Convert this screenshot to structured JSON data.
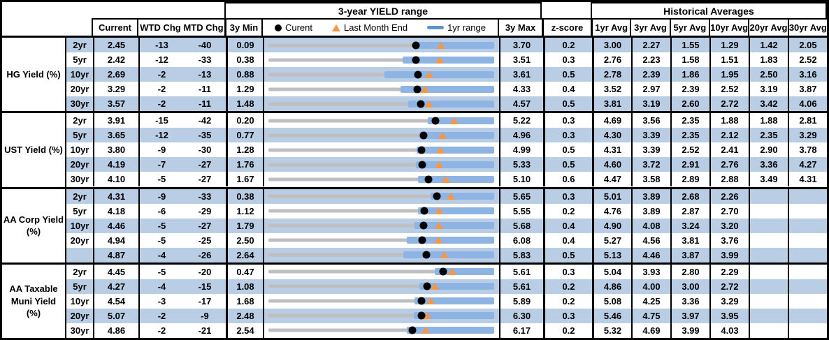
{
  "titles": {
    "range": "3-year YIELD range",
    "historical": "Historical Averages"
  },
  "legend": {
    "current": "Curent",
    "last_month_end": "Last Month End",
    "range_1yr": "1yr range"
  },
  "columns": {
    "current": "Current",
    "wtd": "WTD Chg",
    "mtd": "MTD Chg",
    "min3y": "3y Min",
    "max3y": "3y Max",
    "zscore": "z-score",
    "averages": [
      "1yr Avg",
      "3yr Avg",
      "5yr Avg",
      "10yr Avg",
      "20yr Avg",
      "30yr Avg"
    ]
  },
  "colors": {
    "stripe": "#B9CDE5",
    "bar_1yr_range": "#8EB4E3",
    "track_3y_range": "#BFBFBF",
    "marker_last_month_end": "#F79646",
    "marker_current": "#000000",
    "legend_dash": "#6291CE"
  },
  "chart_data": {
    "type": "bullet-range-table",
    "title": "3-year YIELD range",
    "note": "per row: gray track spans 3y Min to 3y Max; blue bar = 1yr range; black dot = Curent; orange triangle = Last Month End; values in percent yield",
    "groups": [
      {
        "label": "HG Yield (%)",
        "label_lines": [
          "HG Yield (%)"
        ],
        "rows": [
          {
            "tenor": "2yr",
            "current": "2.45",
            "wtd_chg": "-13",
            "mtd_chg": "-40",
            "min_3y": "0.09",
            "max_3y": "3.70",
            "z_score": "0.2",
            "averages": [
              "3.00",
              "2.27",
              "1.55",
              "1.29",
              "1.42",
              "2.05"
            ],
            "chart": {
              "min": 0.09,
              "max": 3.7,
              "current": 2.45,
              "last_month_end": 2.85,
              "range_1yr_low": 2.4,
              "range_1yr_high": 3.7
            }
          },
          {
            "tenor": "5yr",
            "current": "2.42",
            "wtd_chg": "-12",
            "mtd_chg": "-33",
            "min_3y": "0.38",
            "max_3y": "3.51",
            "z_score": "0.3",
            "averages": [
              "2.76",
              "2.23",
              "1.58",
              "1.51",
              "1.83",
              "2.52"
            ],
            "chart": {
              "min": 0.38,
              "max": 3.51,
              "current": 2.42,
              "last_month_end": 2.75,
              "range_1yr_low": 2.24,
              "range_1yr_high": 3.51
            }
          },
          {
            "tenor": "10yr",
            "current": "2.69",
            "wtd_chg": "-2",
            "mtd_chg": "-13",
            "min_3y": "0.88",
            "max_3y": "3.61",
            "z_score": "0.5",
            "averages": [
              "2.78",
              "2.39",
              "1.86",
              "1.95",
              "2.50",
              "3.16"
            ],
            "chart": {
              "min": 0.88,
              "max": 3.61,
              "current": 2.69,
              "last_month_end": 2.82,
              "range_1yr_low": 2.28,
              "range_1yr_high": 3.61
            }
          },
          {
            "tenor": "20yr",
            "current": "3.29",
            "wtd_chg": "-2",
            "mtd_chg": "-11",
            "min_3y": "1.29",
            "max_3y": "4.33",
            "z_score": "0.4",
            "averages": [
              "3.52",
              "2.97",
              "2.39",
              "2.52",
              "3.19",
              "3.87"
            ],
            "chart": {
              "min": 1.29,
              "max": 4.33,
              "current": 3.29,
              "last_month_end": 3.4,
              "range_1yr_low": 3.07,
              "range_1yr_high": 4.33
            }
          },
          {
            "tenor": "30yr",
            "current": "3.57",
            "wtd_chg": "-2",
            "mtd_chg": "-11",
            "min_3y": "1.48",
            "max_3y": "4.57",
            "z_score": "0.5",
            "averages": [
              "3.81",
              "3.19",
              "2.60",
              "2.72",
              "3.42",
              "4.06"
            ],
            "chart": {
              "min": 1.48,
              "max": 4.57,
              "current": 3.57,
              "last_month_end": 3.68,
              "range_1yr_low": 3.39,
              "range_1yr_high": 4.57
            }
          }
        ]
      },
      {
        "label": "UST Yield (%)",
        "label_lines": [
          "UST Yield (%)"
        ],
        "rows": [
          {
            "tenor": "2yr",
            "current": "3.91",
            "wtd_chg": "-15",
            "mtd_chg": "-42",
            "min_3y": "0.20",
            "max_3y": "5.22",
            "z_score": "0.3",
            "averages": [
              "4.69",
              "3.56",
              "2.35",
              "1.88",
              "1.88",
              "2.81"
            ],
            "chart": {
              "min": 0.2,
              "max": 5.22,
              "current": 3.91,
              "last_month_end": 4.33,
              "range_1yr_low": 3.75,
              "range_1yr_high": 5.22
            }
          },
          {
            "tenor": "5yr",
            "current": "3.65",
            "wtd_chg": "-12",
            "mtd_chg": "-35",
            "min_3y": "0.77",
            "max_3y": "4.96",
            "z_score": "0.3",
            "averages": [
              "4.30",
              "3.39",
              "2.35",
              "2.12",
              "2.35",
              "3.29"
            ],
            "chart": {
              "min": 0.77,
              "max": 4.96,
              "current": 3.65,
              "last_month_end": 4.0,
              "range_1yr_low": 3.57,
              "range_1yr_high": 4.96
            }
          },
          {
            "tenor": "10yr",
            "current": "3.80",
            "wtd_chg": "-9",
            "mtd_chg": "-30",
            "min_3y": "1.28",
            "max_3y": "4.99",
            "z_score": "0.5",
            "averages": [
              "4.31",
              "3.39",
              "2.52",
              "2.41",
              "2.90",
              "3.78"
            ],
            "chart": {
              "min": 1.28,
              "max": 4.99,
              "current": 3.8,
              "last_month_end": 4.1,
              "range_1yr_low": 3.72,
              "range_1yr_high": 4.99
            }
          },
          {
            "tenor": "20yr",
            "current": "4.19",
            "wtd_chg": "-7",
            "mtd_chg": "-27",
            "min_3y": "1.76",
            "max_3y": "5.33",
            "z_score": "0.5",
            "averages": [
              "4.60",
              "3.72",
              "2.91",
              "2.76",
              "3.36",
              "4.27"
            ],
            "chart": {
              "min": 1.76,
              "max": 5.33,
              "current": 4.19,
              "last_month_end": 4.46,
              "range_1yr_low": 4.09,
              "range_1yr_high": 5.33
            }
          },
          {
            "tenor": "30yr",
            "current": "4.10",
            "wtd_chg": "-5",
            "mtd_chg": "-27",
            "min_3y": "1.67",
            "max_3y": "5.10",
            "z_score": "0.6",
            "averages": [
              "4.47",
              "3.58",
              "2.89",
              "2.88",
              "3.49",
              "4.31"
            ],
            "chart": {
              "min": 1.67,
              "max": 5.1,
              "current": 4.1,
              "last_month_end": 4.37,
              "range_1yr_low": 3.94,
              "range_1yr_high": 5.1
            }
          }
        ]
      },
      {
        "label": "AA Corp Yield (%)",
        "label_lines": [
          "AA Corp Yield",
          "(%)"
        ],
        "rows": [
          {
            "tenor": "2yr",
            "current": "4.31",
            "wtd_chg": "-9",
            "mtd_chg": "-33",
            "min_3y": "0.38",
            "max_3y": "5.65",
            "z_score": "0.3",
            "averages": [
              "5.01",
              "3.89",
              "2.68",
              "2.26",
              "",
              ""
            ],
            "chart": {
              "min": 0.38,
              "max": 5.65,
              "current": 4.31,
              "last_month_end": 4.64,
              "range_1yr_low": 4.17,
              "range_1yr_high": 5.65
            }
          },
          {
            "tenor": "5yr",
            "current": "4.18",
            "wtd_chg": "-6",
            "mtd_chg": "-29",
            "min_3y": "1.12",
            "max_3y": "5.55",
            "z_score": "0.2",
            "averages": [
              "4.76",
              "3.89",
              "2.87",
              "2.70",
              "",
              ""
            ],
            "chart": {
              "min": 1.12,
              "max": 5.55,
              "current": 4.18,
              "last_month_end": 4.47,
              "range_1yr_low": 4.06,
              "range_1yr_high": 5.55
            }
          },
          {
            "tenor": "10yr",
            "current": "4.46",
            "wtd_chg": "-5",
            "mtd_chg": "-27",
            "min_3y": "1.79",
            "max_3y": "5.68",
            "z_score": "0.4",
            "averages": [
              "4.90",
              "4.08",
              "3.24",
              "3.20",
              "",
              ""
            ],
            "chart": {
              "min": 1.79,
              "max": 5.68,
              "current": 4.46,
              "last_month_end": 4.73,
              "range_1yr_low": 4.31,
              "range_1yr_high": 5.68
            }
          },
          {
            "tenor": "20yr",
            "current": "4.94",
            "wtd_chg": "-5",
            "mtd_chg": "-25",
            "min_3y": "2.50",
            "max_3y": "6.08",
            "z_score": "0.4",
            "averages": [
              "5.27",
              "4.56",
              "3.81",
              "3.76",
              "",
              ""
            ],
            "chart": {
              "min": 2.5,
              "max": 6.08,
              "current": 4.94,
              "last_month_end": 5.19,
              "range_1yr_low": 4.7,
              "range_1yr_high": 6.08
            }
          },
          {
            "tenor": "",
            "current": "4.87",
            "wtd_chg": "-4",
            "mtd_chg": "-26",
            "min_3y": "2.64",
            "max_3y": "5.83",
            "z_score": "0.5",
            "averages": [
              "5.13",
              "4.46",
              "3.87",
              "3.99",
              "",
              ""
            ],
            "chart": {
              "min": 2.64,
              "max": 5.83,
              "current": 4.87,
              "last_month_end": 5.13,
              "range_1yr_low": 4.55,
              "range_1yr_high": 5.83
            }
          }
        ]
      },
      {
        "label": "AA Taxable Muni Yield (%)",
        "label_lines": [
          "AA Taxable",
          "Muni Yield",
          "(%)"
        ],
        "rows": [
          {
            "tenor": "2yr",
            "current": "4.45",
            "wtd_chg": "-5",
            "mtd_chg": "-20",
            "min_3y": "0.47",
            "max_3y": "5.61",
            "z_score": "0.3",
            "averages": [
              "5.04",
              "3.93",
              "2.80",
              "2.29",
              "",
              ""
            ],
            "chart": {
              "min": 0.47,
              "max": 5.61,
              "current": 4.45,
              "last_month_end": 4.65,
              "range_1yr_low": 4.26,
              "range_1yr_high": 5.61
            }
          },
          {
            "tenor": "5yr",
            "current": "4.27",
            "wtd_chg": "-4",
            "mtd_chg": "-15",
            "min_3y": "1.08",
            "max_3y": "5.61",
            "z_score": "0.2",
            "averages": [
              "4.86",
              "4.00",
              "3.00",
              "2.72",
              "",
              ""
            ],
            "chart": {
              "min": 1.08,
              "max": 5.61,
              "current": 4.27,
              "last_month_end": 4.42,
              "range_1yr_low": 4.11,
              "range_1yr_high": 5.61
            }
          },
          {
            "tenor": "10yr",
            "current": "4.54",
            "wtd_chg": "-3",
            "mtd_chg": "-17",
            "min_3y": "1.68",
            "max_3y": "5.89",
            "z_score": "0.2",
            "averages": [
              "5.08",
              "4.25",
              "3.36",
              "3.29",
              "",
              ""
            ],
            "chart": {
              "min": 1.68,
              "max": 5.89,
              "current": 4.54,
              "last_month_end": 4.71,
              "range_1yr_low": 4.41,
              "range_1yr_high": 5.89
            }
          },
          {
            "tenor": "20yr",
            "current": "5.07",
            "wtd_chg": "-2",
            "mtd_chg": "-9",
            "min_3y": "2.48",
            "max_3y": "6.30",
            "z_score": "0.3",
            "averages": [
              "5.46",
              "4.75",
              "3.97",
              "3.95",
              "",
              ""
            ],
            "chart": {
              "min": 2.48,
              "max": 6.3,
              "current": 5.07,
              "last_month_end": 5.16,
              "range_1yr_low": 4.94,
              "range_1yr_high": 6.3
            }
          },
          {
            "tenor": "30yr",
            "current": "4.86",
            "wtd_chg": "-2",
            "mtd_chg": "-21",
            "min_3y": "2.54",
            "max_3y": "6.17",
            "z_score": "0.2",
            "averages": [
              "5.32",
              "4.69",
              "3.99",
              "4.03",
              "",
              ""
            ],
            "chart": {
              "min": 2.54,
              "max": 6.17,
              "current": 4.86,
              "last_month_end": 5.07,
              "range_1yr_low": 4.77,
              "range_1yr_high": 6.17
            }
          }
        ]
      }
    ]
  }
}
